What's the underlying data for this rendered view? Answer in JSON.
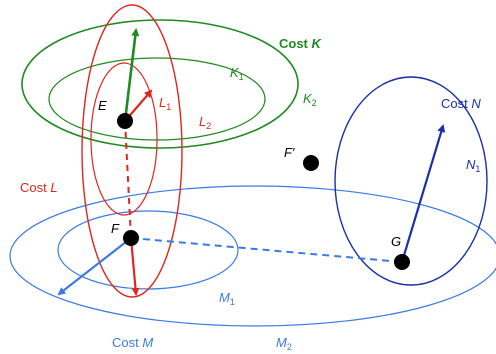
{
  "colors": {
    "green": "#1f8a1f",
    "red": "#e0261e",
    "blue_light": "#3b7be0",
    "blue_dark": "#1a2fa8",
    "black": "#000000"
  },
  "labels": {
    "cost_k_prefix": "Cost ",
    "cost_k_var": "K",
    "k1_var": "K",
    "k1_sub": "1",
    "k2_var": "K",
    "k2_sub": "2",
    "e": "E",
    "l1_var": "L",
    "l1_sub": "1",
    "l2_var": "L",
    "l2_sub": "2",
    "f_prime": "F′",
    "cost_n_prefix": "Cost ",
    "cost_n_var": "N",
    "n1_var": "N",
    "n1_sub": "1",
    "cost_l_prefix": "Cost ",
    "cost_l_var": "L",
    "f": "F",
    "g": "G",
    "m1_var": "M",
    "m1_sub": "1",
    "cost_m_prefix": "Cost ",
    "cost_m_var": "M",
    "m2_var": "M",
    "m2_sub": "2"
  }
}
